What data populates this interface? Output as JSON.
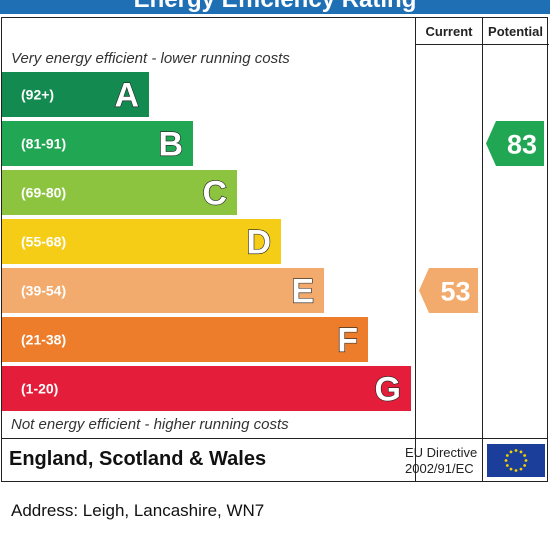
{
  "header": {
    "title": "Energy Efficiency Rating"
  },
  "columns": {
    "current": "Current",
    "potential": "Potential"
  },
  "top_note": "Very energy efficient - lower running costs",
  "bottom_note": "Not energy efficient - higher running costs",
  "footer": {
    "country": "England, Scotland & Wales",
    "directive_line1": "EU Directive",
    "directive_line2": "2002/91/EC"
  },
  "address": "Address: Leigh, Lancashire, WN7",
  "chart_data": {
    "type": "bar",
    "title": "Energy Efficiency Rating",
    "bands": [
      {
        "letter": "A",
        "range": "(92+)",
        "color": "#138a4f"
      },
      {
        "letter": "B",
        "range": "(81-91)",
        "color": "#21a653"
      },
      {
        "letter": "C",
        "range": "(69-80)",
        "color": "#8cc43f"
      },
      {
        "letter": "D",
        "range": "(55-68)",
        "color": "#f5cd17"
      },
      {
        "letter": "E",
        "range": "(39-54)",
        "color": "#f2ab6d"
      },
      {
        "letter": "F",
        "range": "(21-38)",
        "color": "#ed7d2b"
      },
      {
        "letter": "G",
        "range": "(1-20)",
        "color": "#e41e3a"
      }
    ],
    "current": {
      "value": 53,
      "band": "E",
      "color": "#f2ab6d"
    },
    "potential": {
      "value": 83,
      "band": "B",
      "color": "#21a653"
    }
  }
}
